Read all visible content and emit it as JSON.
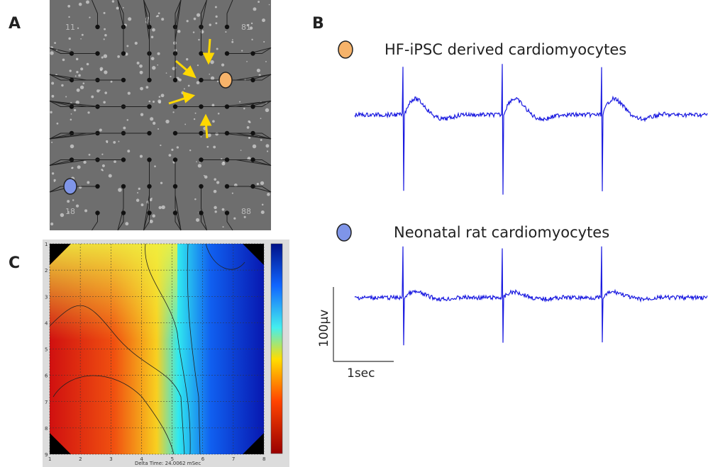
{
  "panels": {
    "a": {
      "label": "A",
      "electrode_labels": [
        "11",
        "81",
        "18",
        "88"
      ]
    },
    "b": {
      "label": "B",
      "legend": [
        "HF-iPSC derived cardiomyocytes",
        "Neonatal rat cardiomyocytes"
      ],
      "scale_voltage": "100μv",
      "scale_time": "1sec"
    },
    "c": {
      "label": "C",
      "x_ticks": [
        "1",
        "2",
        "3",
        "4",
        "5",
        "6",
        "7",
        "8"
      ],
      "y_ticks": [
        "1",
        "2",
        "3",
        "4",
        "5",
        "6",
        "7",
        "8",
        "9"
      ],
      "caption": "Delta Time: 24.0062 mSec"
    }
  }
}
